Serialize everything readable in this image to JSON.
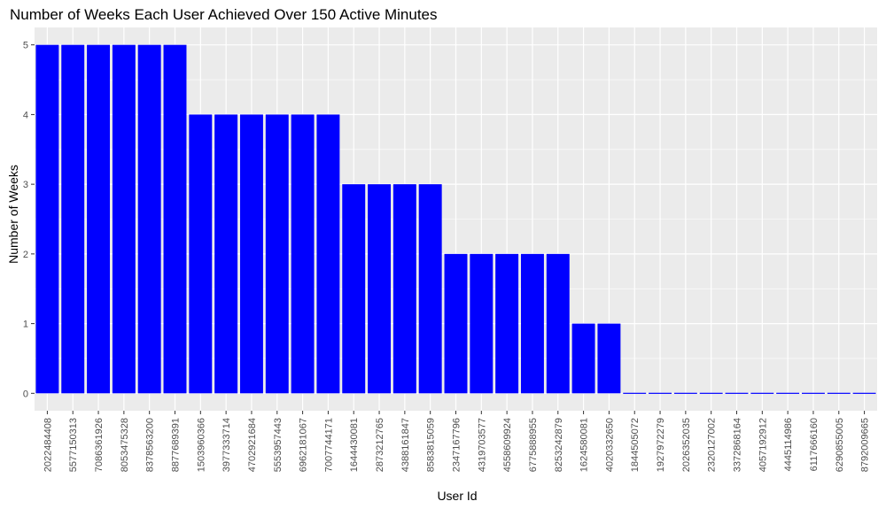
{
  "chart_data": {
    "type": "bar",
    "title": "Number of Weeks Each User Achieved Over 150 Active Minutes",
    "xlabel": "User Id",
    "ylabel": "Number of Weeks",
    "ylim": [
      -0.25,
      5.25
    ],
    "yticks": [
      0,
      1,
      2,
      3,
      4,
      5
    ],
    "grid": true,
    "bar_color": "#0000FF",
    "panel_color": "#EBEBEB",
    "grid_color": "#FFFFFF",
    "categories": [
      "2022484408",
      "5577150313",
      "7086361926",
      "8053475328",
      "8378563200",
      "8877689391",
      "1503960366",
      "3977333714",
      "4702921684",
      "5553957443",
      "6962181067",
      "7007744171",
      "1644430081",
      "2873212765",
      "4388161847",
      "8583815059",
      "2347167796",
      "4319703577",
      "4558609924",
      "6775888955",
      "8253242879",
      "1624580081",
      "4020332650",
      "1844505072",
      "1927972279",
      "2026352035",
      "2320127002",
      "3372868164",
      "4057192912",
      "4445114986",
      "6117666160",
      "6290855005",
      "8792009665"
    ],
    "values": [
      5,
      5,
      5,
      5,
      5,
      5,
      4,
      4,
      4,
      4,
      4,
      4,
      3,
      3,
      3,
      3,
      2,
      2,
      2,
      2,
      2,
      1,
      1,
      0,
      0,
      0,
      0,
      0,
      0,
      0,
      0,
      0,
      0
    ]
  }
}
